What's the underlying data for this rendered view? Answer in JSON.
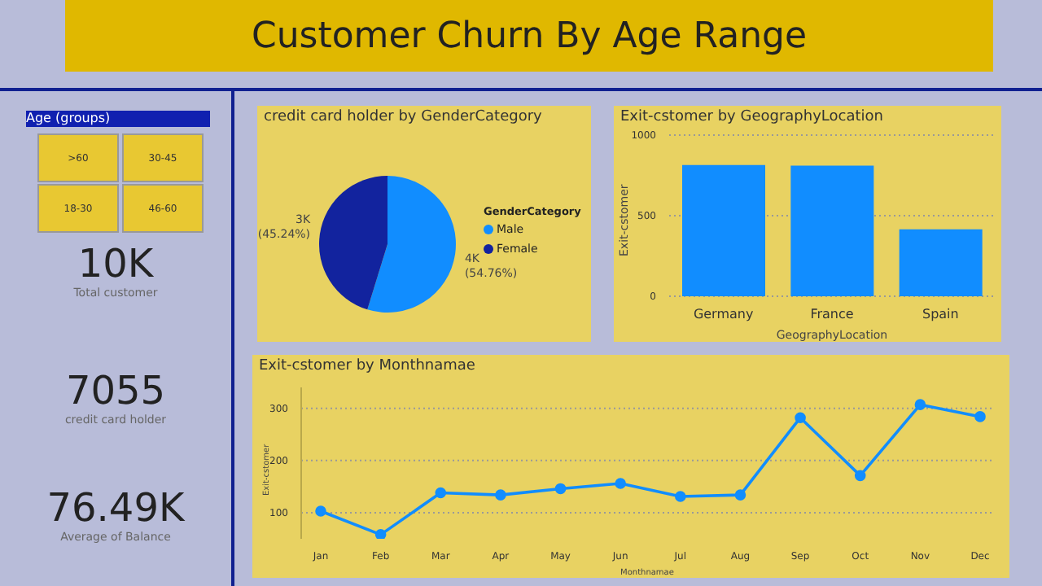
{
  "chart_data": [
    {
      "type": "other",
      "title": "Customer Churn By Age Range"
    },
    {
      "type": "other",
      "legend_title": "Age (groups)",
      "categories": [
        ">60",
        "30-45",
        "18-30",
        "46-60"
      ],
      "annotations": [
        "10K",
        "Total customer",
        "7055",
        "credit card holder",
        "76.49K",
        "Average of Balance"
      ]
    },
    {
      "type": "pie",
      "title": "credit card holder by GenderCategory",
      "categories": [
        "Male",
        "Female"
      ],
      "values": [
        54.76,
        45.24
      ],
      "colors": [
        "#118dff",
        "#12239e"
      ],
      "value_labels": [
        "4K (54.76%)",
        "3K (45.24%)"
      ],
      "legend_title": "GenderCategory",
      "legend": "right"
    },
    {
      "type": "bar",
      "title": "Exit-cstomer by GeographyLocation",
      "categories": [
        "Germany",
        "France",
        "Spain"
      ],
      "values": [
        815,
        810,
        415
      ],
      "color": "#118dff",
      "xlabel": "GeographyLocation",
      "ylabel": "Exit-cstomer",
      "ylim": [
        0,
        1000
      ],
      "yticks": [
        0,
        500,
        1000
      ],
      "grid": "y"
    },
    {
      "type": "line",
      "title": "Exit-cstomer by Monthnamae",
      "categories": [
        "Jan",
        "Feb",
        "Mar",
        "Apr",
        "May",
        "Jun",
        "Jul",
        "Aug",
        "Sep",
        "Oct",
        "Nov",
        "Dec"
      ],
      "values": [
        103,
        58,
        138,
        134,
        146,
        156,
        131,
        134,
        282,
        171,
        307,
        284
      ],
      "color": "#118dff",
      "marker": "circle",
      "xlabel": "Monthnamae",
      "ylabel": "Exit-cstomer",
      "ylim": [
        50,
        340
      ],
      "yticks": [
        100,
        200,
        300
      ],
      "grid": "y"
    }
  ]
}
